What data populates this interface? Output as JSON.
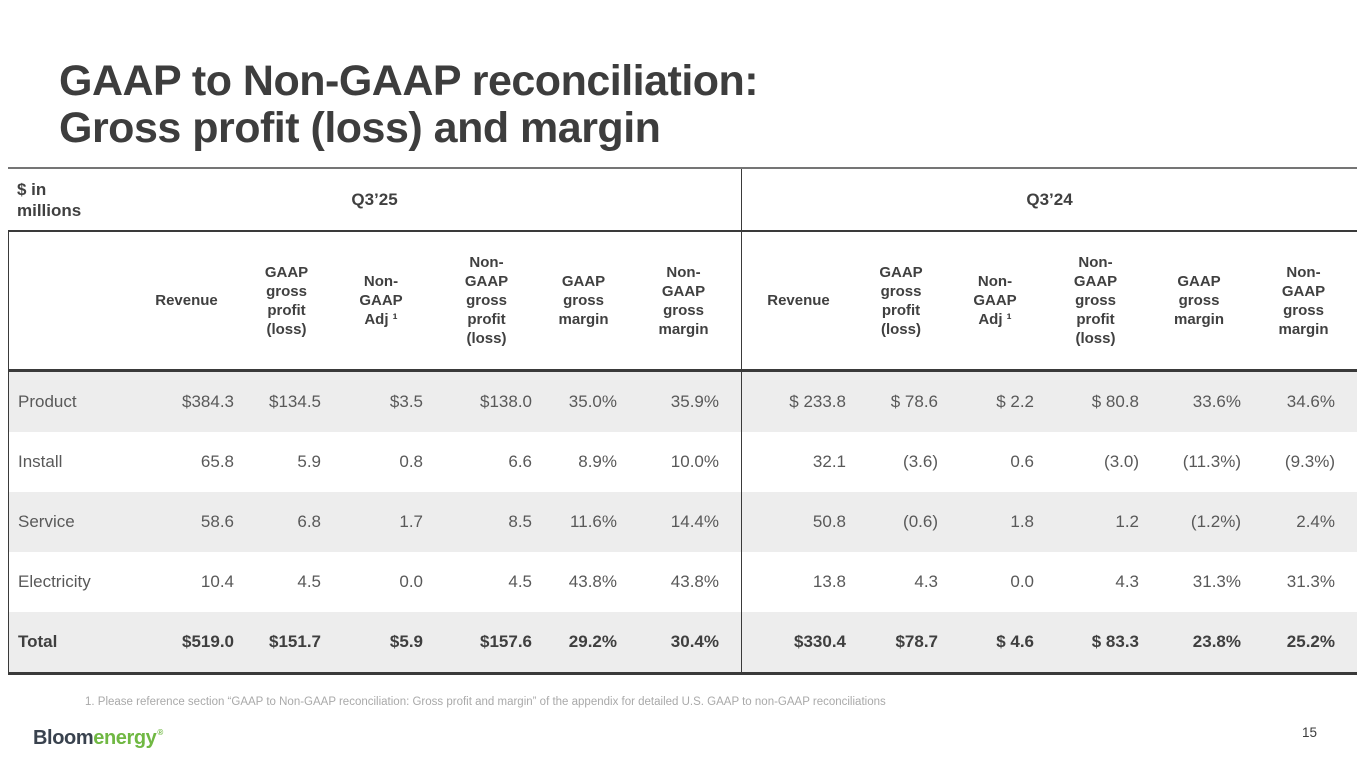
{
  "slide": {
    "title_lines": [
      "GAAP to Non-GAAP reconciliation:",
      "Gross profit (loss) and margin"
    ],
    "footnote": "1. Please reference section “GAAP to Non-GAAP reconciliation: Gross profit and margin” of the appendix for detailed U.S. GAAP to non-GAAP reconciliations",
    "page_number": "15",
    "logo": {
      "part1": "Bloom",
      "part2": "energy",
      "mark": "®"
    }
  },
  "table": {
    "units_lines": [
      "$ in",
      "millions"
    ],
    "periods": {
      "left": "Q3’25",
      "right": "Q3’24"
    },
    "column_headers": [
      [
        "Revenue"
      ],
      [
        "GAAP",
        "gross",
        "profit",
        "(loss)"
      ],
      [
        "Non-",
        "GAAP",
        "Adj ¹"
      ],
      [
        "Non-",
        "GAAP",
        "gross",
        "profit",
        "(loss)"
      ],
      [
        "GAAP",
        "gross",
        "margin"
      ],
      [
        "Non-",
        "GAAP",
        "gross",
        "margin"
      ]
    ],
    "rows": [
      {
        "label": "Product",
        "shaded": true,
        "bold": false,
        "q325": [
          "$384.3",
          "$134.5",
          "$3.5",
          "$138.0",
          "35.0%",
          "35.9%"
        ],
        "q324": [
          "$ 233.8",
          "$ 78.6",
          "$ 2.2",
          "$ 80.8",
          "33.6%",
          "34.6%"
        ]
      },
      {
        "label": "Install",
        "shaded": false,
        "bold": false,
        "q325": [
          "65.8",
          "5.9",
          "0.8",
          "6.6",
          "8.9%",
          "10.0%"
        ],
        "q324": [
          "32.1",
          "(3.6)",
          "0.6",
          "(3.0)",
          "(11.3%)",
          "(9.3%)"
        ]
      },
      {
        "label": "Service",
        "shaded": true,
        "bold": false,
        "q325": [
          "58.6",
          "6.8",
          "1.7",
          "8.5",
          "11.6%",
          "14.4%"
        ],
        "q324": [
          "50.8",
          "(0.6)",
          "1.8",
          "1.2",
          "(1.2%)",
          "2.4%"
        ]
      },
      {
        "label": "Electricity",
        "shaded": false,
        "bold": false,
        "q325": [
          "10.4",
          "4.5",
          "0.0",
          "4.5",
          "43.8%",
          "43.8%"
        ],
        "q324": [
          "13.8",
          "4.3",
          "0.0",
          "4.3",
          "31.3%",
          "31.3%"
        ]
      },
      {
        "label": "Total",
        "shaded": true,
        "bold": true,
        "q325": [
          "$519.0",
          "$151.7",
          "$5.9",
          "$157.6",
          "29.2%",
          "30.4%"
        ],
        "q324": [
          "$330.4",
          "$78.7",
          "$ 4.6",
          "$ 83.3",
          "23.8%",
          "25.2%"
        ]
      }
    ]
  },
  "colors": {
    "title_text": "#3d3d3d",
    "header_text": "#404040",
    "data_text": "#595959",
    "shaded_row": "#ededed",
    "border_dark": "#3a3a3a",
    "border_top_hairline": "#757575",
    "footnote_text": "#a9a9a9",
    "logo_dark": "#39424e",
    "logo_green": "#70b843"
  }
}
